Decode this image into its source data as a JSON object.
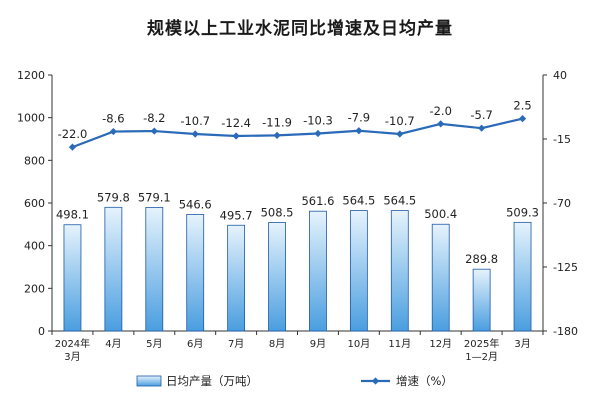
{
  "chart_data": {
    "type": "bar+line",
    "title": "规模以上工业水泥同比增速及日均产量",
    "categories": [
      [
        "2024年",
        "3月"
      ],
      [
        "4月"
      ],
      [
        "5月"
      ],
      [
        "6月"
      ],
      [
        "7月"
      ],
      [
        "8月"
      ],
      [
        "9月"
      ],
      [
        "10月"
      ],
      [
        "11月"
      ],
      [
        "12月"
      ],
      [
        "2025年",
        "1—2月"
      ],
      [
        "3月"
      ]
    ],
    "series": [
      {
        "name": "日均产量（万吨）",
        "type": "bar",
        "axis": "left",
        "values": [
          498.1,
          579.8,
          579.1,
          546.6,
          495.7,
          508.5,
          561.6,
          564.5,
          564.5,
          500.4,
          289.8,
          509.3
        ],
        "labels": [
          "498.1",
          "579.8",
          "579.1",
          "546.6",
          "495.7",
          "508.5",
          "561.6",
          "564.5",
          "564.5",
          "500.4",
          "289.8",
          "509.3"
        ]
      },
      {
        "name": "增速（%）",
        "type": "line",
        "axis": "right",
        "values": [
          -22.0,
          -8.6,
          -8.2,
          -10.7,
          -12.4,
          -11.9,
          -10.3,
          -7.9,
          -10.7,
          -2.0,
          -5.7,
          2.5
        ],
        "labels": [
          "-22.0",
          "-8.6",
          "-8.2",
          "-10.7",
          "-12.4",
          "-11.9",
          "-10.3",
          "-7.9",
          "-10.7",
          "-2.0",
          "-5.7",
          "2.5"
        ]
      }
    ],
    "left_axis": {
      "min": 0,
      "max": 1200,
      "ticks": [
        "0",
        "200",
        "400",
        "600",
        "800",
        "1000",
        "1200"
      ]
    },
    "right_axis": {
      "min": -180,
      "max": 40,
      "ticks": [
        "-180",
        "-125",
        "-70",
        "-15",
        "40"
      ]
    },
    "legend_position": "bottom",
    "grid": false,
    "colors": {
      "bar_top": "#e6f3fc",
      "bar_bottom": "#4a9ee0",
      "bar_stroke": "#1d5aa8",
      "line": "#2a6ab8",
      "axis": "#333333",
      "text": "#222222"
    }
  }
}
